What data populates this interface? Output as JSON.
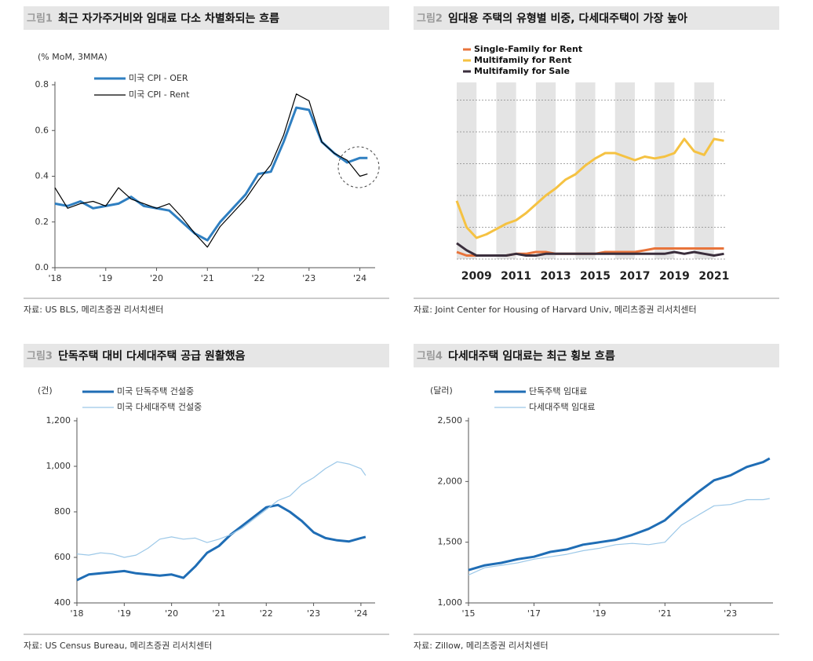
{
  "chart_data": [
    {
      "type": "line",
      "label": "그림1",
      "title": "최근 자가주거비와 임대료 다소 차별화되는 흐름",
      "ylabel": "(% MoM,  3MMA)",
      "source": "자료: US BLS, 메리츠증권 리서치센터",
      "x": [
        2018,
        2018.25,
        2018.5,
        2018.75,
        2019,
        2019.25,
        2019.5,
        2019.75,
        2020,
        2020.25,
        2020.5,
        2020.75,
        2021,
        2021.25,
        2021.5,
        2021.75,
        2022,
        2022.25,
        2022.5,
        2022.75,
        2023,
        2023.25,
        2023.5,
        2023.75,
        2024,
        2024.15
      ],
      "series": [
        {
          "name": "미국 CPI - OER",
          "color": "#2f7fc1",
          "values": [
            0.28,
            0.27,
            0.29,
            0.26,
            0.27,
            0.28,
            0.31,
            0.27,
            0.26,
            0.25,
            0.2,
            0.15,
            0.12,
            0.2,
            0.26,
            0.32,
            0.41,
            0.42,
            0.55,
            0.7,
            0.69,
            0.55,
            0.5,
            0.46,
            0.48,
            0.48
          ]
        },
        {
          "name": "미국 CPI - Rent",
          "color": "#000000",
          "values": [
            0.35,
            0.26,
            0.28,
            0.29,
            0.27,
            0.35,
            0.3,
            0.28,
            0.26,
            0.28,
            0.22,
            0.15,
            0.09,
            0.18,
            0.24,
            0.3,
            0.38,
            0.45,
            0.58,
            0.76,
            0.73,
            0.55,
            0.5,
            0.47,
            0.4,
            0.41
          ]
        }
      ],
      "xlim": [
        2018,
        2024.3
      ],
      "xticks": [
        {
          "value": 2018,
          "label": "'18"
        },
        {
          "value": 2019,
          "label": "'19"
        },
        {
          "value": 2020,
          "label": "'20"
        },
        {
          "value": 2021,
          "label": "'21"
        },
        {
          "value": 2022,
          "label": "'22"
        },
        {
          "value": 2023,
          "label": "'23"
        },
        {
          "value": 2024,
          "label": "'24"
        }
      ],
      "ylim": [
        0,
        0.8
      ],
      "yticks": [
        {
          "value": 0,
          "label": "0.0"
        },
        0.2,
        0.4,
        0.6,
        0.8
      ],
      "grid": false
    },
    {
      "type": "line",
      "label": "그림2",
      "title": "임대용 주택의 유형별 비중, 다세대주택이 가장 높아",
      "source": "자료: Joint Center for Housing of Harvard Univ, 메리츠증권 리서치센터",
      "x": [
        2008,
        2008.5,
        2009,
        2009.5,
        2010,
        2010.5,
        2011,
        2011.5,
        2012,
        2012.5,
        2013,
        2013.5,
        2014,
        2014.5,
        2015,
        2015.5,
        2016,
        2016.5,
        2017,
        2017.5,
        2018,
        2018.5,
        2019,
        2019.5,
        2020,
        2020.5,
        2021,
        2021.5
      ],
      "series": [
        {
          "name": "Single-Family for Rent",
          "color": "#e8743b",
          "values": [
            4,
            2,
            2,
            2,
            2,
            2,
            3,
            3,
            4,
            4,
            3,
            3,
            3,
            3,
            3,
            4,
            4,
            4,
            4,
            5,
            6,
            6,
            6,
            6,
            6,
            6,
            6,
            6
          ]
        },
        {
          "name": "Multifamily for Rent",
          "color": "#f5c242",
          "values": [
            33,
            18,
            12,
            14,
            17,
            20,
            22,
            26,
            31,
            36,
            40,
            45,
            48,
            53,
            57,
            60,
            60,
            58,
            56,
            58,
            57,
            58,
            60,
            68,
            61,
            59,
            68,
            67
          ]
        },
        {
          "name": "Multifamily for Sale",
          "color": "#3a2e3c",
          "values": [
            9,
            5,
            2,
            2,
            2,
            2,
            3,
            2,
            2,
            3,
            3,
            3,
            3,
            3,
            3,
            3,
            3,
            3,
            3,
            3,
            3,
            3,
            4,
            3,
            4,
            3,
            2,
            3
          ]
        }
      ],
      "xlim": [
        2008,
        2021.6
      ],
      "xticks": [
        2009,
        2011,
        2013,
        2015,
        2017,
        2019,
        2021
      ],
      "ylim": [
        0,
        100
      ],
      "yticks": [
        0,
        18,
        36,
        54,
        72,
        90
      ],
      "ytick_labels": false,
      "grid": true,
      "bands": true
    },
    {
      "type": "line",
      "label": "그림3",
      "title": "단독주택 대비 다세대주택 공급 원활했음",
      "ylabel": "(건)",
      "source": "자료: US Census Bureau, 메리츠증권 리서치센터",
      "x": [
        2018,
        2018.25,
        2018.5,
        2018.75,
        2019,
        2019.25,
        2019.5,
        2019.75,
        2020,
        2020.25,
        2020.5,
        2020.75,
        2021,
        2021.25,
        2021.5,
        2021.75,
        2022,
        2022.25,
        2022.5,
        2022.75,
        2023,
        2023.25,
        2023.5,
        2023.75,
        2024,
        2024.1
      ],
      "series": [
        {
          "name": "미국 단독주택 건설중",
          "color": "#1f6db5",
          "values": [
            500,
            525,
            530,
            535,
            540,
            530,
            525,
            520,
            525,
            510,
            560,
            620,
            650,
            700,
            740,
            780,
            820,
            830,
            800,
            760,
            710,
            685,
            675,
            670,
            685,
            690
          ]
        },
        {
          "name": "미국 다세대주택 건설중",
          "color": "#9cc8e8",
          "values": [
            615,
            610,
            620,
            615,
            600,
            610,
            640,
            680,
            690,
            680,
            685,
            665,
            680,
            700,
            730,
            770,
            810,
            850,
            870,
            920,
            950,
            990,
            1020,
            1010,
            990,
            960
          ]
        }
      ],
      "xlim": [
        2018,
        2024.3
      ],
      "xticks": [
        {
          "value": 2018,
          "label": "'18"
        },
        {
          "value": 2019,
          "label": "'19"
        },
        {
          "value": 2020,
          "label": "'20"
        },
        {
          "value": 2021,
          "label": "'21"
        },
        {
          "value": 2022,
          "label": "'22"
        },
        {
          "value": 2023,
          "label": "'23"
        },
        {
          "value": 2024,
          "label": "'24"
        }
      ],
      "ylim": [
        400,
        1200
      ],
      "yticks": [
        400,
        600,
        800,
        {
          "value": 1000,
          "label": "1,000"
        },
        {
          "value": 1200,
          "label": "1,200"
        }
      ],
      "grid": false
    },
    {
      "type": "line",
      "label": "그림4",
      "title": "다세대주택 임대료는 최근 횡보 흐름",
      "ylabel": "(달러)",
      "source": "자료: Zillow, 메리츠증권 리서치센터",
      "x": [
        2015,
        2015.5,
        2016,
        2016.5,
        2017,
        2017.5,
        2018,
        2018.5,
        2019,
        2019.5,
        2020,
        2020.5,
        2021,
        2021.5,
        2022,
        2022.5,
        2023,
        2023.5,
        2024,
        2024.2
      ],
      "series": [
        {
          "name": "단독주택 임대료",
          "color": "#1f6db5",
          "values": [
            1270,
            1310,
            1330,
            1360,
            1380,
            1420,
            1440,
            1480,
            1500,
            1520,
            1560,
            1610,
            1680,
            1800,
            1910,
            2010,
            2050,
            2120,
            2160,
            2190
          ]
        },
        {
          "name": "다세대주택 임대료",
          "color": "#9cc8e8",
          "values": [
            1230,
            1290,
            1310,
            1330,
            1360,
            1380,
            1400,
            1430,
            1450,
            1480,
            1490,
            1480,
            1500,
            1640,
            1720,
            1800,
            1810,
            1850,
            1850,
            1860
          ]
        }
      ],
      "xlim": [
        2015,
        2024.3
      ],
      "xticks": [
        {
          "value": 2015,
          "label": "'15"
        },
        {
          "value": 2017,
          "label": "'17"
        },
        {
          "value": 2019,
          "label": "'19"
        },
        {
          "value": 2021,
          "label": "'21"
        },
        {
          "value": 2023,
          "label": "'23"
        }
      ],
      "ylim": [
        1000,
        2500
      ],
      "yticks": [
        {
          "value": 1000,
          "label": "1,000"
        },
        {
          "value": 1500,
          "label": "1,500"
        },
        {
          "value": 2000,
          "label": "2,000"
        },
        {
          "value": 2500,
          "label": "2,500"
        }
      ],
      "grid": false
    }
  ]
}
